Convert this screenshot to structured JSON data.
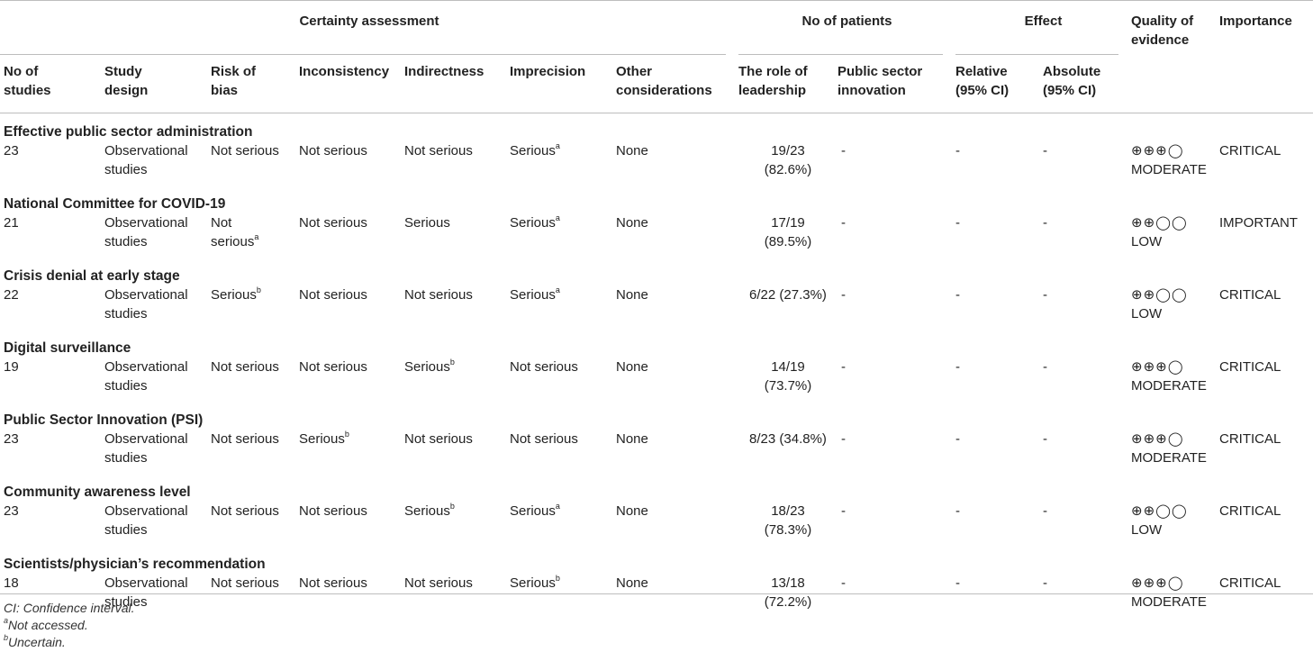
{
  "header": {
    "groups": {
      "certainty": "Certainty assessment",
      "patients": "No of patients",
      "effect": "Effect",
      "quality": [
        "Quality of",
        "evidence"
      ],
      "importance": "Importance"
    },
    "columns": {
      "num_studies": [
        "No of",
        "studies"
      ],
      "study_design": [
        "Study",
        "design"
      ],
      "risk_of_bias": [
        "Risk of",
        "bias"
      ],
      "inconsistency": "Inconsistency",
      "indirectness": "Indirectness",
      "imprecision": "Imprecision",
      "other": [
        "Other",
        "considerations"
      ],
      "role_leadership": [
        "The role of",
        "leadership"
      ],
      "psi": [
        "Public sector",
        "innovation"
      ],
      "relative": [
        "Relative",
        "(95% CI)"
      ],
      "absolute": [
        "Absolute",
        "(95% CI)"
      ]
    }
  },
  "sections": [
    {
      "title": "Effective public sector administration",
      "row": {
        "studies": "23",
        "design": [
          "Observational",
          "studies"
        ],
        "bias": "Not serious",
        "bias_sup": "",
        "inconsistency": "Not serious",
        "inconsistency_sup": "",
        "indirectness": "Not serious",
        "indirectness_sup": "",
        "imprecision": "Serious",
        "imprecision_sup": "a",
        "other": "None",
        "leadership": [
          "19/23",
          "(82.6%)"
        ],
        "psi": "-",
        "relative": "-",
        "absolute": "-",
        "quality_symbols": "⊕⊕⊕◯",
        "quality_label": "MODERATE",
        "importance": "CRITICAL"
      }
    },
    {
      "title": "National Committee for COVID-19",
      "row": {
        "studies": "21",
        "design": [
          "Observational",
          "studies"
        ],
        "bias": [
          "Not",
          "serious"
        ],
        "bias_sup": "a",
        "inconsistency": "Not serious",
        "inconsistency_sup": "",
        "indirectness": "Serious",
        "indirectness_sup": "",
        "imprecision": "Serious",
        "imprecision_sup": "a",
        "other": "None",
        "leadership": [
          "17/19",
          "(89.5%)"
        ],
        "psi": "-",
        "relative": "-",
        "absolute": "-",
        "quality_symbols": "⊕⊕◯◯",
        "quality_label": "LOW",
        "importance": "IMPORTANT"
      }
    },
    {
      "title": "Crisis denial at early stage",
      "row": {
        "studies": "22",
        "design": [
          "Observational",
          "studies"
        ],
        "bias": "Serious",
        "bias_sup": "b",
        "inconsistency": "Not serious",
        "inconsistency_sup": "",
        "indirectness": "Not serious",
        "indirectness_sup": "",
        "imprecision": "Serious",
        "imprecision_sup": "a",
        "other": "None",
        "leadership": [
          "6/22 (27.3%)"
        ],
        "psi": "-",
        "relative": "-",
        "absolute": "-",
        "quality_symbols": "⊕⊕◯◯",
        "quality_label": "LOW",
        "importance": "CRITICAL"
      }
    },
    {
      "title": "Digital surveillance",
      "row": {
        "studies": "19",
        "design": [
          "Observational",
          "studies"
        ],
        "bias": "Not serious",
        "bias_sup": "",
        "inconsistency": "Not serious",
        "inconsistency_sup": "",
        "indirectness": "Serious",
        "indirectness_sup": "b",
        "imprecision": "Not serious",
        "imprecision_sup": "",
        "other": "None",
        "leadership": [
          "14/19",
          "(73.7%)"
        ],
        "psi": "-",
        "relative": "-",
        "absolute": "-",
        "quality_symbols": "⊕⊕⊕◯",
        "quality_label": "MODERATE",
        "importance": "CRITICAL"
      }
    },
    {
      "title": "Public Sector Innovation (PSI)",
      "row": {
        "studies": "23",
        "design": [
          "Observational",
          "studies"
        ],
        "bias": "Not serious",
        "bias_sup": "",
        "inconsistency": "Serious",
        "inconsistency_sup": "b",
        "indirectness": "Not serious",
        "indirectness_sup": "",
        "imprecision": "Not serious",
        "imprecision_sup": "",
        "other": "None",
        "leadership": [
          "8/23 (34.8%)"
        ],
        "psi": "-",
        "relative": "-",
        "absolute": "-",
        "quality_symbols": "⊕⊕⊕◯",
        "quality_label": "MODERATE",
        "importance": "CRITICAL"
      }
    },
    {
      "title": "Community awareness level",
      "row": {
        "studies": "23",
        "design": [
          "Observational",
          "studies"
        ],
        "bias": "Not serious",
        "bias_sup": "",
        "inconsistency": "Not serious",
        "inconsistency_sup": "",
        "indirectness": "Serious",
        "indirectness_sup": "b",
        "imprecision": "Serious",
        "imprecision_sup": "a",
        "other": "None",
        "leadership": [
          "18/23",
          "(78.3%)"
        ],
        "psi": "-",
        "relative": "-",
        "absolute": "-",
        "quality_symbols": "⊕⊕◯◯",
        "quality_label": "LOW",
        "importance": "CRITICAL"
      }
    },
    {
      "title": "Scientists/physician’s recommendation",
      "row": {
        "studies": "18",
        "design": [
          "Observational",
          "studies"
        ],
        "bias": "Not serious",
        "bias_sup": "",
        "inconsistency": "Not serious",
        "inconsistency_sup": "",
        "indirectness": "Not serious",
        "indirectness_sup": "",
        "imprecision": "Serious",
        "imprecision_sup": "b",
        "other": "None",
        "leadership": [
          "13/18",
          "(72.2%)"
        ],
        "psi": "-",
        "relative": "-",
        "absolute": "-",
        "quality_symbols": "⊕⊕⊕◯",
        "quality_label": "MODERATE",
        "importance": "CRITICAL"
      }
    }
  ],
  "footnotes": {
    "ci": "CI: Confidence interval.",
    "a_mark": "a",
    "a_text": "Not accessed.",
    "b_mark": "b",
    "b_text": "Uncertain."
  }
}
